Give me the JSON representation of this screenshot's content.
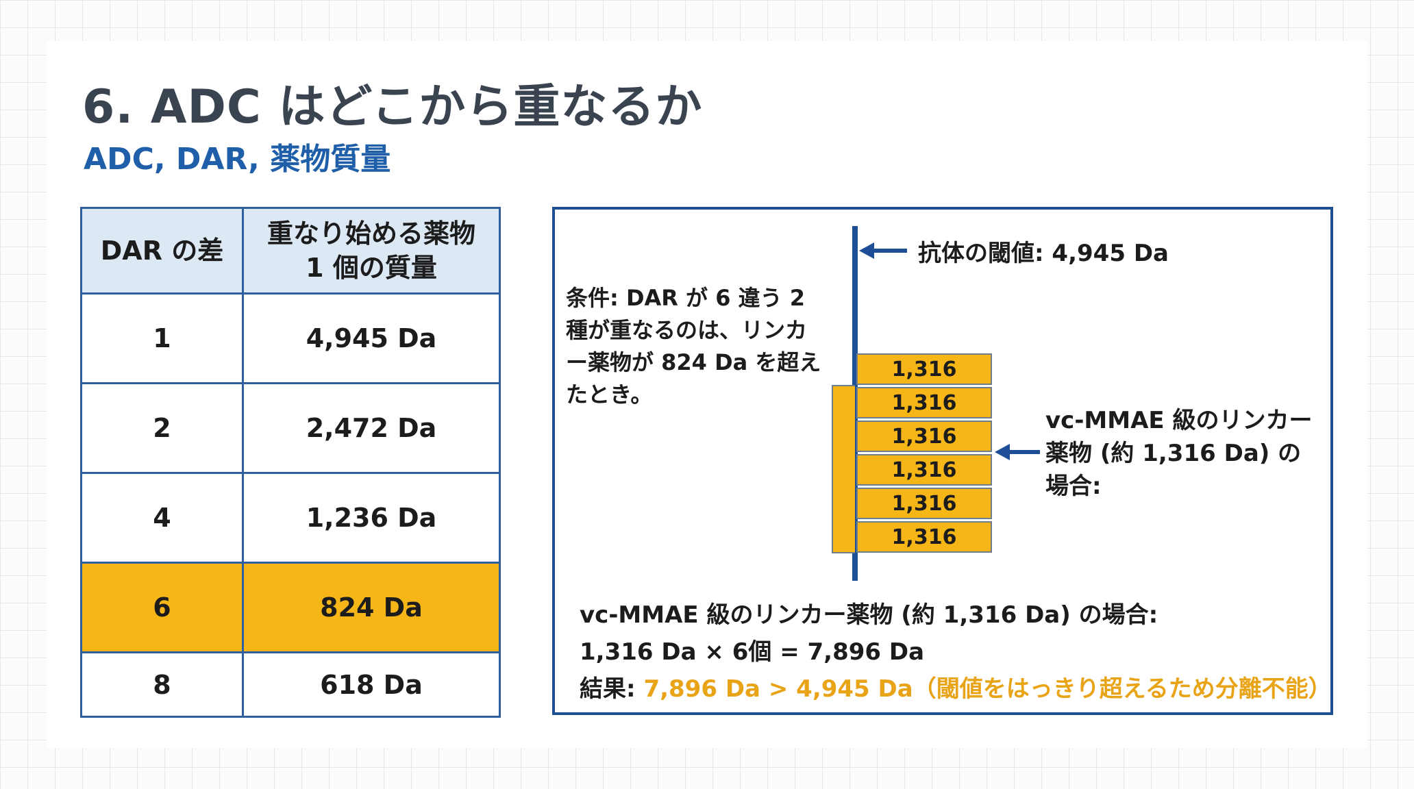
{
  "header": {
    "title": "6. ADC はどこから重なるか",
    "subtitle": "ADC, DAR, 薬物質量"
  },
  "table": {
    "col1_header": "DAR の差",
    "col2_header_line1": "重なり始める薬物",
    "col2_header_line2": "1 個の質量",
    "rows": [
      {
        "dar": "1",
        "mass": "4,945 Da"
      },
      {
        "dar": "2",
        "mass": "2,472 Da"
      },
      {
        "dar": "4",
        "mass": "1,236 Da"
      },
      {
        "dar": "6",
        "mass": "824 Da"
      },
      {
        "dar": "8",
        "mass": "618 Da"
      }
    ],
    "highlight_color": "#f6b617"
  },
  "panel": {
    "threshold_label": "抗体の閾値: 4,945 Da",
    "condition_lines": [
      "条件: DAR が 6 違う 2",
      "種が重なるのは、リンカ",
      "ー薬物が 824 Da を超え",
      "たとき。"
    ],
    "block_label": "1,316",
    "side_lines": [
      "vc-MMAE 級のリンカー",
      "薬物 (約 1,316 Da) の",
      "場合:"
    ],
    "bottom_line1": "vc-MMAE 級のリンカー薬物 (約 1,316 Da) の場合:",
    "bottom_line2": "1,316 Da × 6個 = 7,896 Da",
    "result_prefix": "結果:",
    "result_value": "7,896 Da > 4,945 Da（閾値をはっきり超えるため分離不能）",
    "accent_color": "#1e4f96",
    "result_color": "#e8a317"
  }
}
